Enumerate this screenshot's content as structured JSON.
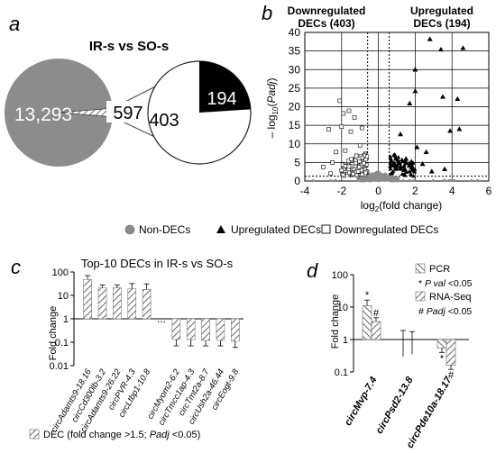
{
  "panels": {
    "a": "a",
    "b": "b",
    "c": "c",
    "d": "d"
  },
  "legend": {
    "non_decs": "Non-DECs",
    "upregulated": "Upregulated DECs",
    "downregulated": "Downregulated DECs"
  },
  "chart_data": [
    {
      "panel": "a",
      "type": "pie",
      "title": "IR-s vs SO-s",
      "slices": [
        {
          "label": "13,293",
          "value": 13293,
          "color": "#8c8c8c"
        },
        {
          "label": "597",
          "value": 597,
          "pattern": "hatch"
        }
      ],
      "sub_pie": {
        "slices": [
          {
            "label": "403",
            "value": 403,
            "color": "#ffffff"
          },
          {
            "label": "194",
            "value": 194,
            "color": "#000000"
          }
        ]
      }
    },
    {
      "panel": "b",
      "type": "scatter",
      "title": "",
      "annotations": [
        "Downregulated DECs (403)",
        "Upregulated DECs (194)"
      ],
      "xlabel": "log2(fold change)",
      "ylabel": "- log10(Padj)",
      "xlim": [
        -4,
        6
      ],
      "ylim": [
        0,
        40
      ],
      "xticks": [
        -4,
        -2,
        0,
        2,
        4,
        6
      ],
      "yticks": [
        0,
        5,
        10,
        15,
        20,
        25,
        30,
        35,
        40
      ],
      "grid": true,
      "thresholds": {
        "x": [
          -0.585,
          0.585
        ],
        "y": 1.3
      },
      "up_points": [
        [
          2.8,
          38.2
        ],
        [
          3.4,
          35.4
        ],
        [
          4.6,
          35.8
        ],
        [
          2.0,
          30.0
        ],
        [
          2.0,
          24.2
        ],
        [
          3.5,
          22.7
        ],
        [
          4.3,
          22.1
        ],
        [
          1.7,
          20.9
        ],
        [
          4.4,
          14.0
        ],
        [
          3.9,
          13.5
        ],
        [
          1.2,
          12.6
        ],
        [
          2.1,
          9.1
        ],
        [
          2.6,
          7.8
        ],
        [
          1.5,
          6.0
        ],
        [
          1.8,
          5.2
        ],
        [
          2.4,
          4.6
        ],
        [
          1.2,
          4.0
        ],
        [
          3.6,
          3.2
        ],
        [
          2.9,
          2.6
        ],
        [
          1.4,
          3.0
        ]
      ],
      "down_points": [
        [
          -2.1,
          21.6
        ],
        [
          -1.9,
          18.2
        ],
        [
          -1.6,
          18.9
        ],
        [
          -1.3,
          17.1
        ],
        [
          -2.0,
          14.6
        ],
        [
          -0.9,
          14.3
        ],
        [
          -1.5,
          13.3
        ],
        [
          -2.7,
          13.9
        ],
        [
          -1.0,
          9.6
        ],
        [
          -1.8,
          8.2
        ],
        [
          -2.3,
          7.8
        ],
        [
          -1.2,
          6.8
        ],
        [
          -2.5,
          5.0
        ],
        [
          -0.8,
          4.8
        ],
        [
          -3.0,
          3.8
        ],
        [
          -1.6,
          3.9
        ],
        [
          -2.0,
          2.9
        ],
        [
          -1.1,
          2.6
        ],
        [
          -0.7,
          2.2
        ],
        [
          -2.6,
          2.0
        ]
      ]
    },
    {
      "panel": "c",
      "type": "bar",
      "title": "Top-10 DECs in IR-s vs SO-s",
      "ylabel": "Fold change",
      "yscale": "log",
      "ylim": [
        0.01,
        100
      ],
      "yticks": [
        "0.01",
        "0.1",
        "1",
        "10",
        "100"
      ],
      "categories": [
        "circAdamts9-18.16",
        "circCd300lb-3.2",
        "circAdamts9-26.22",
        "circPVR-4.3",
        "circLtbp1-10.8",
        "...",
        "circMyom2-6.2",
        "circTmcc1ap-4.3",
        "circTmt2a-8.7",
        "circUsh2a-46.44",
        "circEogt-9.8"
      ],
      "values": [
        48,
        21,
        21,
        19,
        18,
        null,
        0.13,
        0.13,
        0.12,
        0.12,
        0.11
      ],
      "errors": [
        22,
        7,
        7,
        13,
        13,
        null,
        0.06,
        0.06,
        0.05,
        0.05,
        0.05
      ],
      "legend": "DEC (fold change >1.5; Padj <0.05)"
    },
    {
      "panel": "d",
      "type": "bar",
      "ylabel": "Fold change",
      "yscale": "log",
      "ylim": [
        0.1,
        100
      ],
      "yticks": [
        "0.1",
        "1",
        "10",
        "100"
      ],
      "categories": [
        "circMvp-7.4",
        "circPsd2-13.8",
        "circPde10a-18.17"
      ],
      "series": [
        {
          "name": "PCR",
          "values": [
            11,
            1.1,
            0.55
          ],
          "errors": [
            5.5,
            0.8,
            0.15
          ]
        },
        {
          "name": "RNA-Seq",
          "values": [
            3.6,
            1.05,
            0.16
          ],
          "errors": [
            1.1,
            0.7,
            0.05
          ]
        }
      ],
      "marks": {
        "pcr": "*",
        "rnaseq": "#"
      },
      "legend_notes": [
        "* P val <0.05",
        "# Padj <0.05"
      ]
    }
  ]
}
